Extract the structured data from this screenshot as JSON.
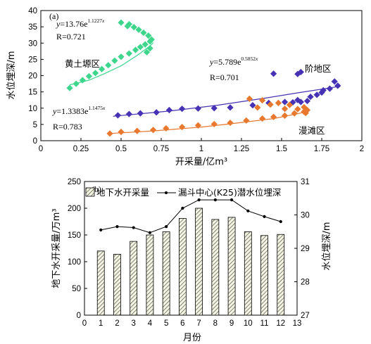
{
  "chart_data": [
    {
      "type": "scatter",
      "panel_label": "(a)",
      "xlabel": "开采量/亿m³",
      "ylabel": "水位埋深/m",
      "xlim": [
        0,
        2
      ],
      "ylim": [
        0,
        40
      ],
      "xticks": [
        "0",
        "0.25",
        "0.5",
        "0.75",
        "1",
        "1.25",
        "1.5",
        "1.75",
        "2"
      ],
      "yticks": [
        "0",
        "5",
        "10",
        "15",
        "20",
        "25",
        "30",
        "35",
        "40"
      ],
      "grid": false,
      "series": [
        {
          "name": "黄土塬区",
          "color": "#3dd68c",
          "marker": "diamond",
          "equation": "y=13.76e^1.1227x",
          "r_text": "R=0.721",
          "points": [
            [
              0.18,
              16.2
            ],
            [
              0.22,
              17.5
            ],
            [
              0.26,
              18.6
            ],
            [
              0.3,
              19.8
            ],
            [
              0.34,
              20.8
            ],
            [
              0.38,
              22
            ],
            [
              0.42,
              23.2
            ],
            [
              0.46,
              24.6
            ],
            [
              0.5,
              25.8
            ],
            [
              0.55,
              26.8
            ],
            [
              0.59,
              27.9
            ],
            [
              0.62,
              28.8
            ],
            [
              0.65,
              29.6
            ],
            [
              0.68,
              30.5
            ],
            [
              0.69,
              31.1
            ],
            [
              0.67,
              32.3
            ],
            [
              0.64,
              33.2
            ],
            [
              0.61,
              34.1
            ],
            [
              0.58,
              34.9
            ],
            [
              0.55,
              35.8
            ],
            [
              0.5,
              36.3
            ],
            [
              0.66,
              27.2
            ],
            [
              0.68,
              28.4
            ],
            [
              0.54,
              35.2
            ]
          ],
          "fit_line": [
            [
              0.18,
              17.2
            ],
            [
              0.3,
              18.6
            ],
            [
              0.4,
              20.7
            ],
            [
              0.5,
              23
            ],
            [
              0.6,
              26.2
            ],
            [
              0.68,
              29.1
            ],
            [
              0.7,
              30.1
            ]
          ]
        },
        {
          "name": "阶地区",
          "color": "#4632b4",
          "marker": "diamond",
          "equation": "y=5.789e^0.5852x",
          "r_text": "R=0.701",
          "points": [
            [
              0.48,
              7.8
            ],
            [
              0.55,
              8.2
            ],
            [
              0.62,
              8.4
            ],
            [
              0.72,
              8.7
            ],
            [
              0.8,
              9.4
            ],
            [
              0.88,
              9.8
            ],
            [
              0.98,
              9.9
            ],
            [
              1.08,
              10
            ],
            [
              1.18,
              10.2
            ],
            [
              1.32,
              10.9
            ],
            [
              1.42,
              11.6
            ],
            [
              1.52,
              11.9
            ],
            [
              1.6,
              12.5
            ],
            [
              1.68,
              13.5
            ],
            [
              1.75,
              14.8
            ],
            [
              1.8,
              16
            ],
            [
              1.85,
              16.9
            ],
            [
              1.83,
              18.2
            ],
            [
              1.6,
              20.5
            ],
            [
              1.62,
              21.1
            ],
            [
              1.72,
              14.1
            ],
            [
              1.62,
              11.9
            ],
            [
              1.76,
              15.5
            ],
            [
              1.66,
              12.2
            ],
            [
              1.57,
              11.8
            ],
            [
              1.45,
              20.6
            ]
          ],
          "fit_line": [
            [
              0.45,
              7.5
            ],
            [
              0.8,
              9.1
            ],
            [
              1.1,
              10.9
            ],
            [
              1.4,
              13.1
            ],
            [
              1.6,
              14.7
            ],
            [
              1.85,
              16.6
            ]
          ]
        },
        {
          "name": "漫滩区",
          "color": "#e8782e",
          "marker": "diamond",
          "equation": "y=1.3383e^1.1475x",
          "r_text": "R=0.783",
          "points": [
            [
              0.43,
              2.2
            ],
            [
              0.5,
              2.7
            ],
            [
              0.6,
              3
            ],
            [
              0.7,
              3.3
            ],
            [
              0.78,
              3.8
            ],
            [
              0.88,
              4.2
            ],
            [
              0.98,
              4.7
            ],
            [
              1.08,
              5.1
            ],
            [
              1.18,
              5.5
            ],
            [
              1.28,
              6.2
            ],
            [
              1.38,
              6.8
            ],
            [
              1.45,
              7.3
            ],
            [
              1.52,
              7.7
            ],
            [
              1.58,
              8.4
            ],
            [
              1.64,
              8.9
            ],
            [
              1.66,
              9.4
            ],
            [
              1.64,
              10.3
            ],
            [
              1.55,
              11
            ],
            [
              1.48,
              11.6
            ],
            [
              1.38,
              12.4
            ],
            [
              1.3,
              12.9
            ],
            [
              1.35,
              10.2
            ],
            [
              1.52,
              9.8
            ],
            [
              1.43,
              11.1
            ],
            [
              1.6,
              9.7
            ],
            [
              1.65,
              8.5
            ]
          ],
          "fit_line": [
            [
              0.43,
              2.2
            ],
            [
              0.7,
              3
            ],
            [
              1,
              4.2
            ],
            [
              1.2,
              5.3
            ],
            [
              1.45,
              6.8
            ],
            [
              1.63,
              8.6
            ]
          ]
        }
      ]
    },
    {
      "type": "bar",
      "panel_label": "(b)",
      "xlabel": "月份",
      "ylabel": "地下水开采量/万m³",
      "ylabel_right": "水位埋深/m",
      "ylim": [
        0,
        250
      ],
      "ylim_right": [
        27,
        31
      ],
      "xlim": [
        0,
        13
      ],
      "xticks": [
        "0",
        "1",
        "2",
        "3",
        "4",
        "5",
        "6",
        "7",
        "8",
        "9",
        "10",
        "11",
        "12",
        "13"
      ],
      "yticks": [
        "0",
        "50",
        "100",
        "150",
        "200",
        "250"
      ],
      "yticks_right": [
        "27",
        "28",
        "29",
        "30",
        "31"
      ],
      "legend_position": "top",
      "categories": [
        1,
        2,
        3,
        4,
        5,
        6,
        7,
        8,
        9,
        10,
        11,
        12
      ],
      "series": [
        {
          "name": "地下水开采量",
          "kind": "bar",
          "axis": "left",
          "values": [
            120,
            114,
            138,
            150,
            156,
            181,
            200,
            179,
            183,
            156,
            149,
            151
          ]
        },
        {
          "name": "漏斗中心(K25)潜水位埋深",
          "kind": "line",
          "axis": "right",
          "values": [
            29.55,
            29.65,
            29.62,
            29.47,
            29.65,
            30.2,
            30.45,
            30.45,
            30.45,
            30.12,
            29.95,
            29.8
          ]
        }
      ]
    }
  ]
}
